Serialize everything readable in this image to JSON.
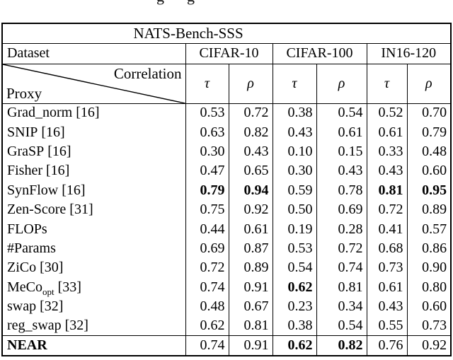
{
  "page": {
    "caption_fragment_1": "g",
    "caption_fragment_2": "g"
  },
  "colors": {
    "text": "#000000",
    "background": "#ffffff",
    "rule": "#000000"
  },
  "table": {
    "title": "NATS-Bench-SSS",
    "dataset_label": "Dataset",
    "datasets": [
      "CIFAR-10",
      "CIFAR-100",
      "IN16-120"
    ],
    "corner_top": "Correlation",
    "corner_bottom": "Proxy",
    "metrics": [
      "τ",
      "ρ",
      "τ",
      "ρ",
      "τ",
      "ρ"
    ],
    "rows": [
      {
        "name": "Grad_norm",
        "sub": "",
        "ref": "[16]",
        "values": [
          "0.53",
          "0.72",
          "0.38",
          "0.54",
          "0.52",
          "0.70"
        ],
        "bold": []
      },
      {
        "name": "SNIP",
        "sub": "",
        "ref": "[16]",
        "values": [
          "0.63",
          "0.82",
          "0.43",
          "0.61",
          "0.61",
          "0.79"
        ],
        "bold": []
      },
      {
        "name": "GraSP",
        "sub": "",
        "ref": "[16]",
        "values": [
          "0.30",
          "0.43",
          "0.10",
          "0.15",
          "0.33",
          "0.48"
        ],
        "bold": []
      },
      {
        "name": "Fisher",
        "sub": "",
        "ref": "[16]",
        "values": [
          "0.47",
          "0.65",
          "0.30",
          "0.43",
          "0.43",
          "0.60"
        ],
        "bold": []
      },
      {
        "name": "SynFlow",
        "sub": "",
        "ref": "[16]",
        "values": [
          "0.79",
          "0.94",
          "0.59",
          "0.78",
          "0.81",
          "0.95"
        ],
        "bold": [
          0,
          1,
          4,
          5
        ]
      },
      {
        "name": "Zen-Score",
        "sub": "",
        "ref": "[31]",
        "values": [
          "0.75",
          "0.92",
          "0.50",
          "0.69",
          "0.72",
          "0.89"
        ],
        "bold": []
      },
      {
        "name": "FLOPs",
        "sub": "",
        "ref": "",
        "values": [
          "0.44",
          "0.61",
          "0.19",
          "0.28",
          "0.41",
          "0.57"
        ],
        "bold": []
      },
      {
        "name": "#Params",
        "sub": "",
        "ref": "",
        "values": [
          "0.69",
          "0.87",
          "0.53",
          "0.72",
          "0.68",
          "0.86"
        ],
        "bold": []
      },
      {
        "name": "ZiCo",
        "sub": "",
        "ref": "[30]",
        "values": [
          "0.72",
          "0.89",
          "0.54",
          "0.74",
          "0.73",
          "0.90"
        ],
        "bold": []
      },
      {
        "name": "MeCo",
        "sub": "opt",
        "ref": "[33]",
        "values": [
          "0.74",
          "0.91",
          "0.62",
          "0.81",
          "0.61",
          "0.80"
        ],
        "bold": [
          2
        ]
      },
      {
        "name": "swap",
        "sub": "",
        "ref": "[32]",
        "values": [
          "0.48",
          "0.67",
          "0.23",
          "0.34",
          "0.43",
          "0.60"
        ],
        "bold": []
      },
      {
        "name": "reg_swap",
        "sub": "",
        "ref": "[32]",
        "values": [
          "0.62",
          "0.81",
          "0.38",
          "0.54",
          "0.55",
          "0.73"
        ],
        "bold": []
      },
      {
        "name": "NEAR",
        "sub": "",
        "ref": "",
        "values": [
          "0.74",
          "0.91",
          "0.62",
          "0.82",
          "0.76",
          "0.92"
        ],
        "bold": [
          2,
          3
        ],
        "footer": true
      }
    ]
  }
}
